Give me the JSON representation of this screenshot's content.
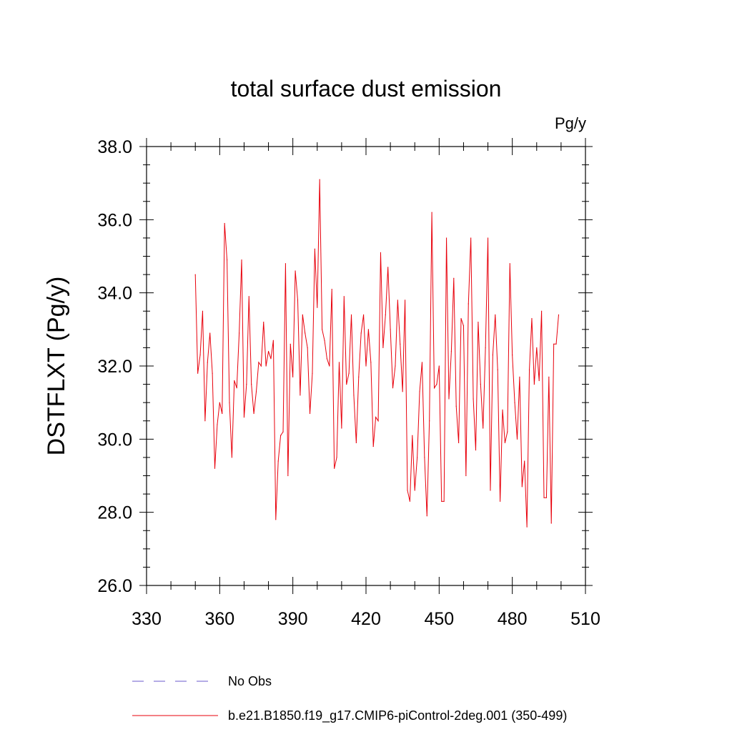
{
  "chart_data": {
    "type": "line",
    "title": "total surface dust emission",
    "units_label": "Pg/y",
    "xlabel": "",
    "ylabel": "DSTFLXT  (Pg/y)",
    "xlim": [
      330,
      510
    ],
    "ylim": [
      26.0,
      38.0
    ],
    "x_ticks": [
      330,
      360,
      390,
      420,
      450,
      480,
      510
    ],
    "x_tick_labels": [
      "330",
      "360",
      "390",
      "420",
      "450",
      "480",
      "510"
    ],
    "y_ticks": [
      26.0,
      28.0,
      30.0,
      32.0,
      34.0,
      36.0,
      38.0
    ],
    "y_tick_labels": [
      "26.0",
      "28.0",
      "30.0",
      "32.0",
      "34.0",
      "36.0",
      "38.0"
    ],
    "grid": false,
    "legend_position": "bottom",
    "colors": {
      "model": "#e8000b",
      "obs": "#6a5acd",
      "axis": "#000000"
    },
    "legend": [
      {
        "name": "No Obs",
        "style": "dashed",
        "color": "#6a5acd"
      },
      {
        "name": "b.e21.B1850.f19_g17.CMIP6-piControl-2deg.001 (350-499)",
        "style": "solid",
        "color": "#e8000b"
      }
    ],
    "series": [
      {
        "name": "b.e21.B1850.f19_g17.CMIP6-piControl-2deg.001 (350-499)",
        "x_start": 350,
        "x_step": 1,
        "values": [
          34.5,
          31.8,
          32.3,
          33.5,
          30.5,
          32.1,
          32.9,
          31.8,
          29.2,
          30.4,
          31.0,
          30.7,
          35.9,
          34.9,
          31.0,
          29.5,
          31.6,
          31.4,
          32.9,
          34.9,
          30.6,
          31.5,
          33.9,
          31.5,
          30.7,
          31.3,
          32.1,
          32.0,
          33.2,
          32.0,
          32.4,
          32.2,
          32.7,
          27.8,
          29.4,
          30.1,
          30.2,
          34.8,
          29.0,
          32.6,
          31.7,
          34.6,
          33.8,
          31.2,
          33.4,
          32.9,
          32.5,
          30.7,
          31.8,
          35.2,
          33.6,
          37.1,
          33.0,
          32.7,
          32.2,
          32.0,
          34.1,
          29.2,
          29.5,
          32.1,
          30.3,
          33.9,
          31.5,
          31.8,
          33.4,
          31.2,
          29.9,
          31.7,
          32.9,
          33.4,
          32.0,
          33.0,
          32.1,
          29.8,
          30.6,
          30.5,
          35.1,
          32.5,
          33.4,
          34.7,
          33.0,
          31.4,
          32.0,
          33.8,
          32.6,
          31.3,
          33.8,
          28.6,
          28.3,
          30.1,
          28.6,
          29.5,
          31.3,
          32.1,
          29.5,
          27.9,
          30.5,
          36.2,
          31.4,
          31.5,
          32.0,
          28.3,
          28.3,
          35.5,
          31.1,
          32.4,
          34.4,
          30.9,
          29.9,
          33.3,
          33.1,
          29.0,
          33.7,
          35.5,
          31.1,
          29.7,
          33.2,
          31.5,
          30.3,
          32.5,
          35.5,
          28.6,
          32.3,
          33.4,
          31.9,
          28.3,
          30.8,
          29.9,
          30.2,
          34.8,
          32.3,
          31.0,
          30.0,
          31.7,
          28.7,
          29.4,
          27.6,
          31.9,
          33.3,
          31.5,
          32.5,
          31.6,
          33.5,
          28.4,
          28.4,
          31.7,
          27.7,
          32.6,
          32.6,
          33.4
        ]
      }
    ]
  }
}
